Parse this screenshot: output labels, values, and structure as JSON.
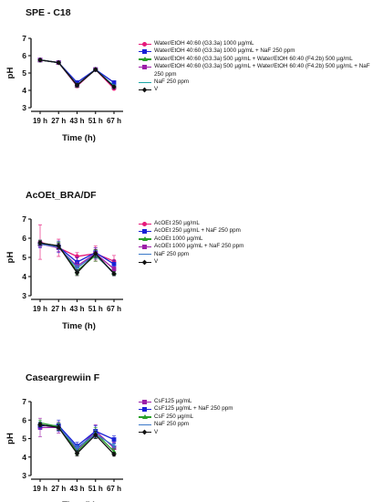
{
  "chart_data": [
    {
      "type": "line",
      "title": "SPE - C18",
      "xlabel": "Time (h)",
      "ylabel": "pH",
      "categories": [
        "19 h",
        "27 h",
        "43 h",
        "51 h",
        "67 h"
      ],
      "ylim": [
        3,
        7
      ],
      "yticks": [
        3,
        4,
        5,
        6,
        7
      ],
      "series": [
        {
          "name": "Water/EtOH 40:60  (G3.3a) 1000 µg/mL",
          "color": "#e6197a",
          "marker": "circle",
          "values": [
            5.75,
            5.6,
            4.25,
            5.2,
            4.1
          ],
          "err": [
            0.05,
            0.05,
            0.1,
            0.05,
            0.05
          ]
        },
        {
          "name": "Water/EtOH 40:60  (G3.3a) 1000 µg/mL  + NaF 250 ppm",
          "color": "#1a22d6",
          "marker": "square",
          "values": [
            5.75,
            5.6,
            4.45,
            5.2,
            4.45
          ],
          "err": [
            0.05,
            0.05,
            0.1,
            0.05,
            0.05
          ]
        },
        {
          "name": "Water/EtOH 40:60  (G3.3a) 500 µg/mL + Water/EtOH 60:40 (F4.2b) 500 µg/mL",
          "color": "#2aa02a",
          "marker": "triangle",
          "values": [
            5.75,
            5.6,
            4.3,
            5.2,
            4.2
          ],
          "err": [
            0.05,
            0.05,
            0.1,
            0.05,
            0.05
          ]
        },
        {
          "name": "Water/EtOH 40:60  (G3.3a) 500 µg/mL + Water/EtOH 60:40 (F4.2b) 500 µg/mL + NaF 250 ppm",
          "color": "#9c1fa8",
          "marker": "square",
          "values": [
            5.75,
            5.6,
            4.3,
            5.2,
            4.2
          ],
          "err": [
            0.05,
            0.05,
            0.1,
            0.05,
            0.05
          ]
        },
        {
          "name": "NaF 250 ppm",
          "color": "#1aa6a6",
          "marker": "cross",
          "values": [
            5.75,
            5.6,
            4.3,
            5.2,
            4.25
          ],
          "err": [
            0.05,
            0.05,
            0.1,
            0.05,
            0.05
          ]
        },
        {
          "name": "V",
          "color": "#111111",
          "marker": "diamond",
          "values": [
            5.75,
            5.6,
            4.3,
            5.2,
            4.2
          ],
          "err": [
            0.05,
            0.05,
            0.1,
            0.05,
            0.05
          ]
        }
      ]
    },
    {
      "type": "line",
      "title": "AcOEt_BRA/DF",
      "xlabel": "Time (h)",
      "ylabel": "pH",
      "categories": [
        "19 h",
        "27 h",
        "43 h",
        "51 h",
        "67 h"
      ],
      "ylim": [
        3,
        7
      ],
      "yticks": [
        3,
        4,
        5,
        6,
        7
      ],
      "series": [
        {
          "name": "AcOEt 250  µg/mL",
          "color": "#e6197a",
          "marker": "circle",
          "values": [
            5.8,
            5.5,
            5.05,
            5.2,
            4.8
          ],
          "err": [
            0.9,
            0.45,
            0.2,
            0.4,
            0.3
          ]
        },
        {
          "name": "AcOEt 250  µg/mL + NaF 250 ppm",
          "color": "#1a22d6",
          "marker": "square",
          "values": [
            5.7,
            5.55,
            4.75,
            5.25,
            4.65
          ],
          "err": [
            0.2,
            0.3,
            0.25,
            0.25,
            0.2
          ]
        },
        {
          "name": "AcOEt 1000 µg/mL",
          "color": "#2aa02a",
          "marker": "triangle",
          "values": [
            5.75,
            5.6,
            4.3,
            5.1,
            4.2
          ],
          "err": [
            0.15,
            0.2,
            0.2,
            0.3,
            0.1
          ]
        },
        {
          "name": "AcOEt 1000 µg/mL + NaF 250 ppm",
          "color": "#9c1fa8",
          "marker": "square",
          "values": [
            5.7,
            5.5,
            4.55,
            5.2,
            4.4
          ],
          "err": [
            0.15,
            0.2,
            0.2,
            0.3,
            0.1
          ]
        },
        {
          "name": "NaF 250 ppm",
          "color": "#3a78c8",
          "marker": "cross",
          "values": [
            5.7,
            5.55,
            4.45,
            5.15,
            4.15
          ],
          "err": [
            0.1,
            0.15,
            0.15,
            0.2,
            0.1
          ]
        },
        {
          "name": "V",
          "color": "#111111",
          "marker": "diamond",
          "values": [
            5.75,
            5.6,
            4.2,
            5.2,
            4.15
          ],
          "err": [
            0.1,
            0.15,
            0.15,
            0.2,
            0.1
          ]
        }
      ]
    },
    {
      "type": "line",
      "title": "Caseargrewiin F",
      "xlabel": "Time (h)",
      "ylabel": "pH",
      "categories": [
        "19 h",
        "27 h",
        "43 h",
        "51 h",
        "67 h"
      ],
      "ylim": [
        3,
        7
      ],
      "yticks": [
        3,
        4,
        5,
        6,
        7
      ],
      "series": [
        {
          "name": "CsF125  µg/mL",
          "color": "#9c1fa8",
          "marker": "square",
          "values": [
            5.6,
            5.6,
            4.4,
            5.4,
            4.5
          ],
          "err": [
            0.5,
            0.3,
            0.3,
            0.35,
            0.3
          ]
        },
        {
          "name": "CsF125  µg/mL + NaF 250 ppm",
          "color": "#1a22d6",
          "marker": "square",
          "values": [
            5.7,
            5.7,
            4.6,
            5.4,
            4.95
          ],
          "err": [
            0.2,
            0.3,
            0.2,
            0.3,
            0.2
          ]
        },
        {
          "name": "CsF 250  µg/mL",
          "color": "#2aa02a",
          "marker": "triangle",
          "values": [
            5.85,
            5.65,
            4.3,
            5.3,
            4.3
          ],
          "err": [
            0.15,
            0.2,
            0.2,
            0.3,
            0.15
          ]
        },
        {
          "name": "NaF 250 ppm",
          "color": "#3a78c8",
          "marker": "cross",
          "values": [
            5.75,
            5.6,
            4.5,
            5.25,
            4.6
          ],
          "err": [
            0.1,
            0.15,
            0.15,
            0.2,
            0.1
          ]
        },
        {
          "name": "V",
          "color": "#111111",
          "marker": "diamond",
          "values": [
            5.75,
            5.6,
            4.2,
            5.2,
            4.15
          ],
          "err": [
            0.1,
            0.15,
            0.15,
            0.2,
            0.1
          ]
        }
      ]
    }
  ]
}
